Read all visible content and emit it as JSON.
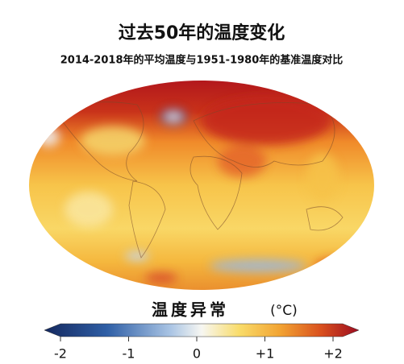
{
  "header": {
    "title": "过去50年的温度变化",
    "subtitle": "2014-2018年的平均温度与1951-1980年的基准温度对比"
  },
  "colorbar": {
    "title": "温度异常",
    "unit": "(°C)",
    "range": [
      -2,
      2
    ],
    "ticks": [
      -2,
      -1,
      0,
      {
        "value": 1,
        "label": "+1"
      },
      {
        "value": 2,
        "label": "+2"
      }
    ]
  }
}
